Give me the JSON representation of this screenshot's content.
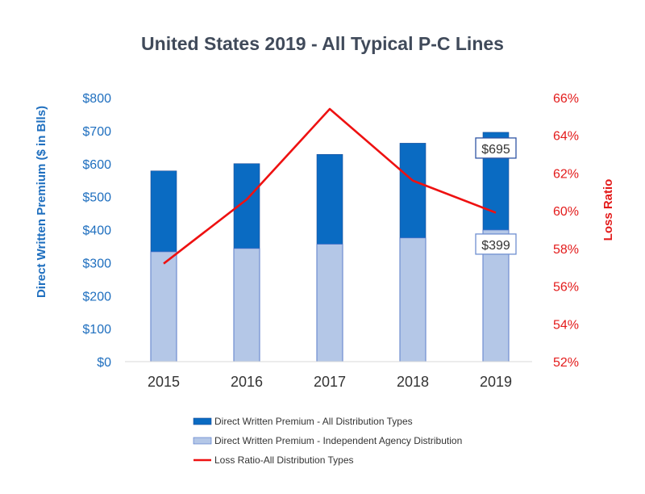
{
  "chart_data": {
    "type": "bar",
    "title": "United States 2019 - All Typical P-C Lines",
    "categories": [
      "2015",
      "2016",
      "2017",
      "2018",
      "2019"
    ],
    "series": [
      {
        "name": "Direct Written Premium - All Distribution Types",
        "values": [
          578,
          600,
          628,
          662,
          695
        ],
        "color": "#0a6bc2",
        "axis": "left",
        "kind": "bar"
      },
      {
        "name": "Direct Written Premium - Independent Agency Distribution",
        "values": [
          333,
          343,
          356,
          375,
          399
        ],
        "color": "#b4c7e7",
        "axis": "left",
        "kind": "bar"
      },
      {
        "name": "Loss Ratio-All Distribution Types",
        "values": [
          57.2,
          60.6,
          65.4,
          61.6,
          59.9
        ],
        "color": "#ee1111",
        "axis": "right",
        "kind": "line"
      }
    ],
    "ylabel": "Direct Written Premium ($ in Blls)",
    "ylabel_right": "Loss Ratio",
    "ylim": [
      0,
      800
    ],
    "ylim_right": [
      52,
      66
    ],
    "yticks": [
      "$0",
      "$100",
      "$200",
      "$300",
      "$400",
      "$500",
      "$600",
      "$700",
      "$800"
    ],
    "yticks_right": [
      "52%",
      "54%",
      "56%",
      "58%",
      "60%",
      "62%",
      "64%",
      "66%"
    ],
    "annotations": [
      {
        "category": "2019",
        "series": 0,
        "text": "$695"
      },
      {
        "category": "2019",
        "series": 1,
        "text": "$399"
      }
    ],
    "legend_position": "bottom",
    "grid": false
  }
}
